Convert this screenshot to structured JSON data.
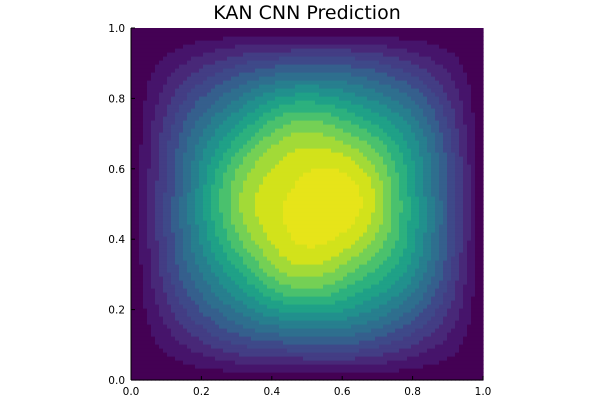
{
  "chart_data": {
    "type": "filled-contour",
    "title": "KAN CNN Prediction",
    "xlabel": "",
    "ylabel": "",
    "xlim": [
      0.0,
      1.0
    ],
    "ylim": [
      0.0,
      1.0
    ],
    "x_ticks": [
      "0.0",
      "0.2",
      "0.4",
      "0.6",
      "0.8",
      "1.0"
    ],
    "y_ticks": [
      "0.0",
      "0.2",
      "0.4",
      "0.6",
      "0.8",
      "1.0"
    ],
    "grid": false,
    "legend": "none",
    "colorbar": "none",
    "colormap": "viridis",
    "field_peak": {
      "x": 0.52,
      "y": 0.5
    },
    "contour_levels": 14,
    "level_colors": [
      "#440154",
      "#46146b",
      "#482878",
      "#433d84",
      "#3e4989",
      "#355f8d",
      "#2e6f8e",
      "#277f8e",
      "#21908d",
      "#1fa187",
      "#2cb17e",
      "#4ac16d",
      "#74d055",
      "#a2da37",
      "#d2e21b",
      "#e7e419"
    ]
  }
}
